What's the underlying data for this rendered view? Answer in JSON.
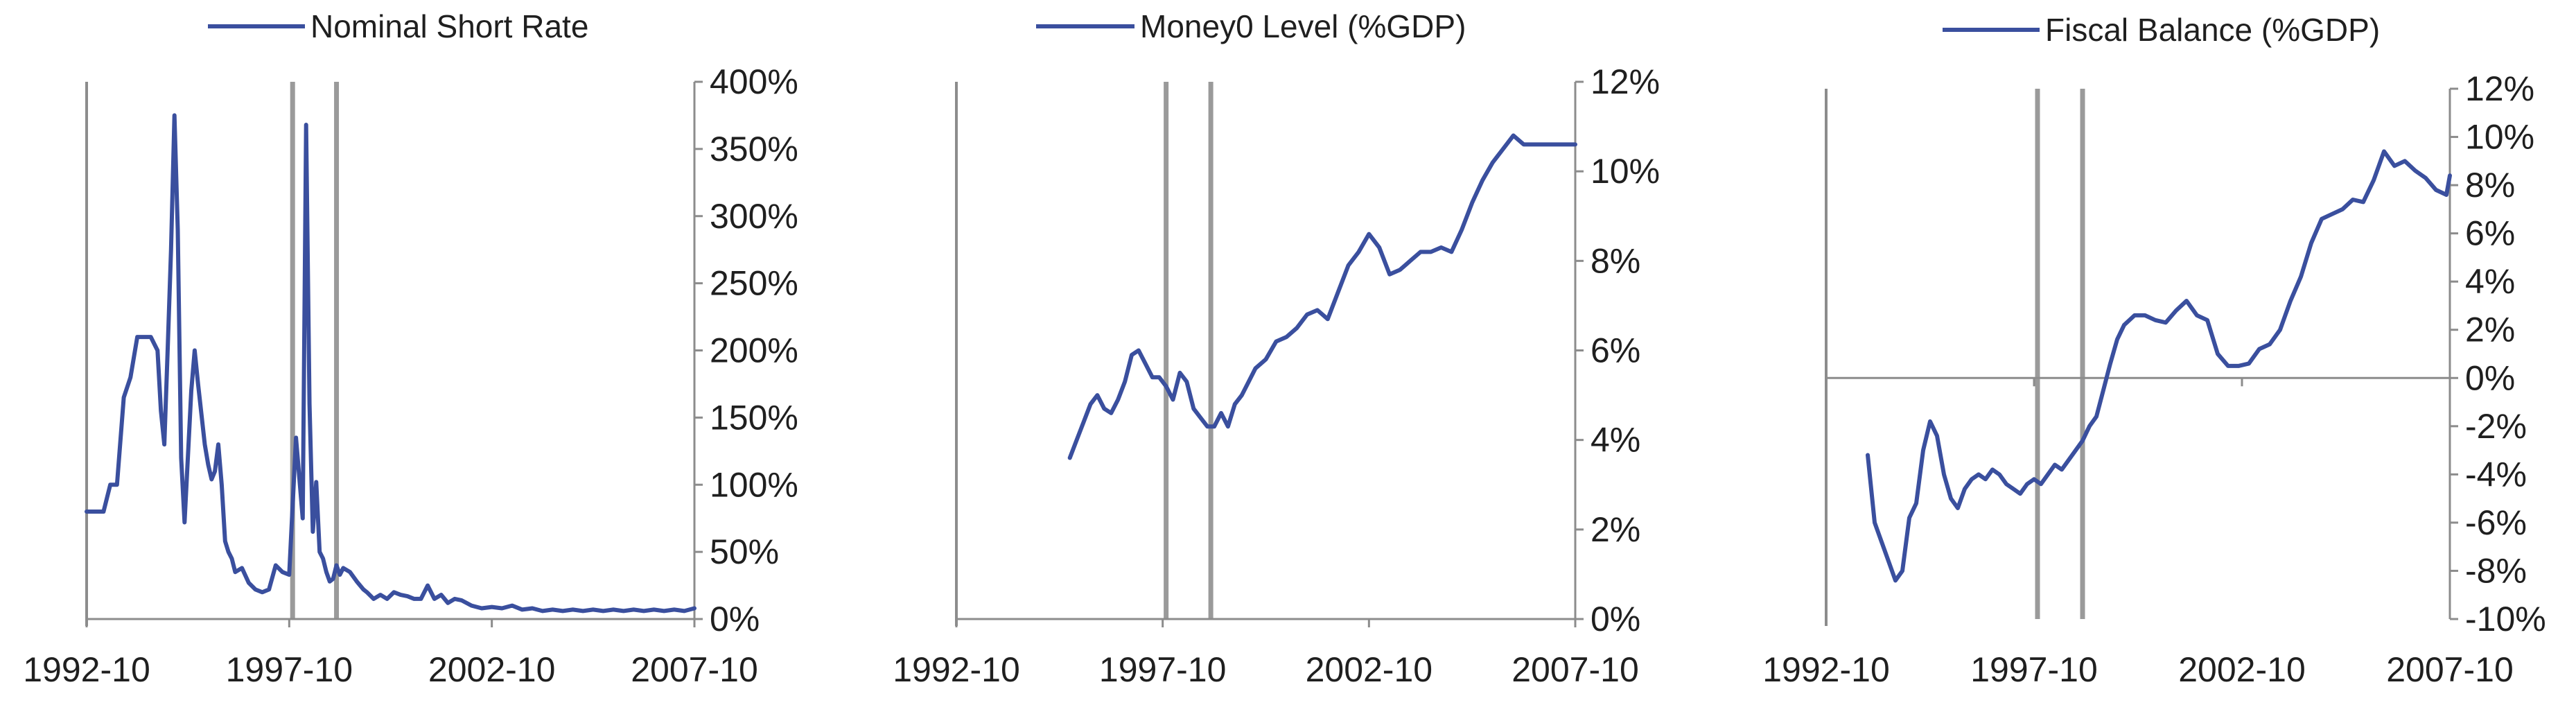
{
  "colors": {
    "series": "#3a4f9e",
    "axis": "#8c8c8c",
    "marker": "#9a9a9a",
    "text": "#1f1f1f"
  },
  "chart_data": [
    {
      "type": "line",
      "title": "",
      "legend": {
        "label": "Nominal Short Rate",
        "placement": "top-center"
      },
      "xlim": [
        "1992-10",
        "2007-10"
      ],
      "x_tick_labels": [
        "1992-10",
        "1997-10",
        "2002-10",
        "2007-10"
      ],
      "ylim": [
        0,
        400
      ],
      "y_ticks": [
        0,
        50,
        100,
        150,
        200,
        250,
        300,
        350,
        400
      ],
      "y_tick_labels": [
        "0%",
        "50%",
        "100%",
        "150%",
        "200%",
        "250%",
        "300%",
        "350%",
        "400%"
      ],
      "y_axis_side": "right",
      "grid": false,
      "vertical_markers": [
        "1997-11",
        "1998-12"
      ],
      "series": [
        {
          "name": "Nominal Short Rate",
          "x": [
            "1992-10",
            "1993-01",
            "1993-03",
            "1993-05",
            "1993-07",
            "1993-09",
            "1993-11",
            "1994-01",
            "1994-03",
            "1994-05",
            "1994-07",
            "1994-08",
            "1994-09",
            "1994-10",
            "1994-11",
            "1994-12",
            "1995-01",
            "1995-02",
            "1995-03",
            "1995-05",
            "1995-06",
            "1995-07",
            "1995-09",
            "1995-10",
            "1995-11",
            "1995-12",
            "1996-01",
            "1996-02",
            "1996-03",
            "1996-04",
            "1996-05",
            "1996-06",
            "1996-08",
            "1996-10",
            "1996-12",
            "1997-02",
            "1997-04",
            "1997-06",
            "1997-08",
            "1997-10",
            "1997-12",
            "1998-02",
            "1998-03",
            "1998-04",
            "1998-05",
            "1998-06",
            "1998-07",
            "1998-08",
            "1998-09",
            "1998-10",
            "1998-11",
            "1998-12",
            "1999-01",
            "1999-02",
            "1999-04",
            "1999-06",
            "1999-08",
            "1999-09",
            "1999-11",
            "2000-01",
            "2000-03",
            "2000-05",
            "2000-07",
            "2000-09",
            "2000-11",
            "2001-01",
            "2001-03",
            "2001-05",
            "2001-07",
            "2001-09",
            "2001-11",
            "2002-01",
            "2002-04",
            "2002-07",
            "2002-10",
            "2003-01",
            "2003-04",
            "2003-07",
            "2003-10",
            "2004-01",
            "2004-04",
            "2004-07",
            "2004-10",
            "2005-01",
            "2005-04",
            "2005-07",
            "2005-10",
            "2006-01",
            "2006-04",
            "2006-07",
            "2006-10",
            "2007-01",
            "2007-04",
            "2007-07",
            "2007-10"
          ],
          "y": [
            80,
            80,
            80,
            100,
            100,
            165,
            180,
            210,
            210,
            210,
            200,
            155,
            130,
            200,
            275,
            375,
            290,
            120,
            72,
            170,
            200,
            175,
            130,
            115,
            104,
            110,
            130,
            100,
            58,
            50,
            45,
            35,
            38,
            27,
            22,
            20,
            22,
            40,
            35,
            33,
            135,
            75,
            368,
            160,
            65,
            102,
            50,
            45,
            35,
            28,
            30,
            40,
            33,
            38,
            35,
            28,
            22,
            20,
            15,
            18,
            15,
            20,
            18,
            17,
            15,
            15,
            25,
            15,
            18,
            12,
            15,
            14,
            10,
            8,
            9,
            8,
            10,
            7,
            8,
            6,
            7,
            6,
            7,
            6,
            7,
            6,
            7,
            6,
            7,
            6,
            7,
            6,
            7,
            6,
            8
          ]
        }
      ]
    },
    {
      "type": "line",
      "title": "",
      "legend": {
        "label": "Money0 Level (%GDP)",
        "placement": "top-center"
      },
      "xlim": [
        "1992-10",
        "2007-10"
      ],
      "x_tick_labels": [
        "1992-10",
        "1997-10",
        "2002-10",
        "2007-10"
      ],
      "ylim": [
        0,
        12
      ],
      "y_ticks": [
        0,
        2,
        4,
        6,
        8,
        10,
        12
      ],
      "y_tick_labels": [
        "0%",
        "2%",
        "4%",
        "6%",
        "8%",
        "10%",
        "12%"
      ],
      "y_axis_side": "right",
      "grid": false,
      "vertical_markers": [
        "1997-11",
        "1998-12"
      ],
      "series": [
        {
          "name": "Money0 Level (%GDP)",
          "x": [
            "1995-07",
            "1995-09",
            "1995-11",
            "1996-01",
            "1996-03",
            "1996-05",
            "1996-07",
            "1996-09",
            "1996-11",
            "1997-01",
            "1997-03",
            "1997-05",
            "1997-07",
            "1997-09",
            "1997-11",
            "1998-01",
            "1998-03",
            "1998-05",
            "1998-07",
            "1998-09",
            "1998-11",
            "1999-01",
            "1999-03",
            "1999-05",
            "1999-07",
            "1999-09",
            "1999-11",
            "2000-01",
            "2000-04",
            "2000-07",
            "2000-10",
            "2001-01",
            "2001-04",
            "2001-07",
            "2001-10",
            "2002-01",
            "2002-04",
            "2002-07",
            "2002-10",
            "2003-01",
            "2003-04",
            "2003-07",
            "2003-10",
            "2004-01",
            "2004-04",
            "2004-07",
            "2004-10",
            "2005-01",
            "2005-04",
            "2005-07",
            "2005-10",
            "2006-01",
            "2006-04",
            "2006-07",
            "2006-10",
            "2007-01",
            "2007-04",
            "2007-07",
            "2007-10"
          ],
          "y": [
            3.6,
            4.0,
            4.4,
            4.8,
            5.0,
            4.7,
            4.6,
            4.9,
            5.3,
            5.9,
            6.0,
            5.7,
            5.4,
            5.4,
            5.2,
            4.9,
            5.5,
            5.3,
            4.7,
            4.5,
            4.3,
            4.3,
            4.6,
            4.3,
            4.8,
            5.0,
            5.3,
            5.6,
            5.8,
            6.2,
            6.3,
            6.5,
            6.8,
            6.9,
            6.7,
            7.3,
            7.9,
            8.2,
            8.6,
            8.3,
            7.7,
            7.8,
            8.0,
            8.2,
            8.2,
            8.3,
            8.2,
            8.7,
            9.3,
            9.8,
            10.2,
            10.5,
            10.8,
            10.6,
            10.6,
            10.6,
            10.6,
            10.6,
            10.6
          ]
        }
      ]
    },
    {
      "type": "line",
      "title": "",
      "legend": {
        "label": "Fiscal Balance (%GDP)",
        "placement": "top-center"
      },
      "xlim": [
        "1992-10",
        "2007-10"
      ],
      "x_tick_labels": [
        "1992-10",
        "1997-10",
        "2002-10",
        "2007-10"
      ],
      "ylim": [
        -10,
        12
      ],
      "y_ticks": [
        -10,
        -8,
        -6,
        -4,
        -2,
        0,
        2,
        4,
        6,
        8,
        10,
        12
      ],
      "y_tick_labels": [
        "-10%",
        "-8%",
        "-6%",
        "-4%",
        "-2%",
        "0%",
        "2%",
        "4%",
        "6%",
        "8%",
        "10%",
        "12%"
      ],
      "y_axis_side": "right",
      "grid": false,
      "zero_line": true,
      "vertical_markers": [
        "1997-11",
        "1998-12"
      ],
      "series": [
        {
          "name": "Fiscal Balance (%GDP)",
          "x": [
            "1993-10",
            "1993-12",
            "1994-02",
            "1994-04",
            "1994-06",
            "1994-08",
            "1994-10",
            "1994-12",
            "1995-02",
            "1995-04",
            "1995-06",
            "1995-08",
            "1995-10",
            "1995-12",
            "1996-02",
            "1996-04",
            "1996-06",
            "1996-08",
            "1996-10",
            "1996-12",
            "1997-02",
            "1997-04",
            "1997-06",
            "1997-08",
            "1997-10",
            "1997-12",
            "1998-02",
            "1998-04",
            "1998-06",
            "1998-08",
            "1998-10",
            "1998-12",
            "1999-02",
            "1999-04",
            "1999-06",
            "1999-08",
            "1999-10",
            "1999-12",
            "2000-03",
            "2000-06",
            "2000-09",
            "2000-12",
            "2001-03",
            "2001-06",
            "2001-09",
            "2001-12",
            "2002-03",
            "2002-06",
            "2002-09",
            "2002-12",
            "2003-03",
            "2003-06",
            "2003-09",
            "2003-12",
            "2004-03",
            "2004-06",
            "2004-09",
            "2004-12",
            "2005-03",
            "2005-06",
            "2005-09",
            "2005-12",
            "2006-03",
            "2006-06",
            "2006-09",
            "2006-12",
            "2007-03",
            "2007-06",
            "2007-09",
            "2007-10"
          ],
          "y": [
            -3.2,
            -6.0,
            -6.8,
            -7.6,
            -8.4,
            -8.0,
            -5.8,
            -5.2,
            -3.0,
            -1.8,
            -2.4,
            -4.0,
            -5.0,
            -5.4,
            -4.6,
            -4.2,
            -4.0,
            -4.2,
            -3.8,
            -4.0,
            -4.4,
            -4.6,
            -4.8,
            -4.4,
            -4.2,
            -4.4,
            -4.0,
            -3.6,
            -3.8,
            -3.4,
            -3.0,
            -2.6,
            -2.0,
            -1.6,
            -0.5,
            0.6,
            1.6,
            2.2,
            2.6,
            2.6,
            2.4,
            2.3,
            2.8,
            3.2,
            2.6,
            2.4,
            1.0,
            0.5,
            0.5,
            0.6,
            1.2,
            1.4,
            2.0,
            3.2,
            4.2,
            5.6,
            6.6,
            6.8,
            7.0,
            7.4,
            7.3,
            8.2,
            9.4,
            8.8,
            9.0,
            8.6,
            8.3,
            7.8,
            7.6,
            8.4
          ]
        }
      ]
    }
  ]
}
